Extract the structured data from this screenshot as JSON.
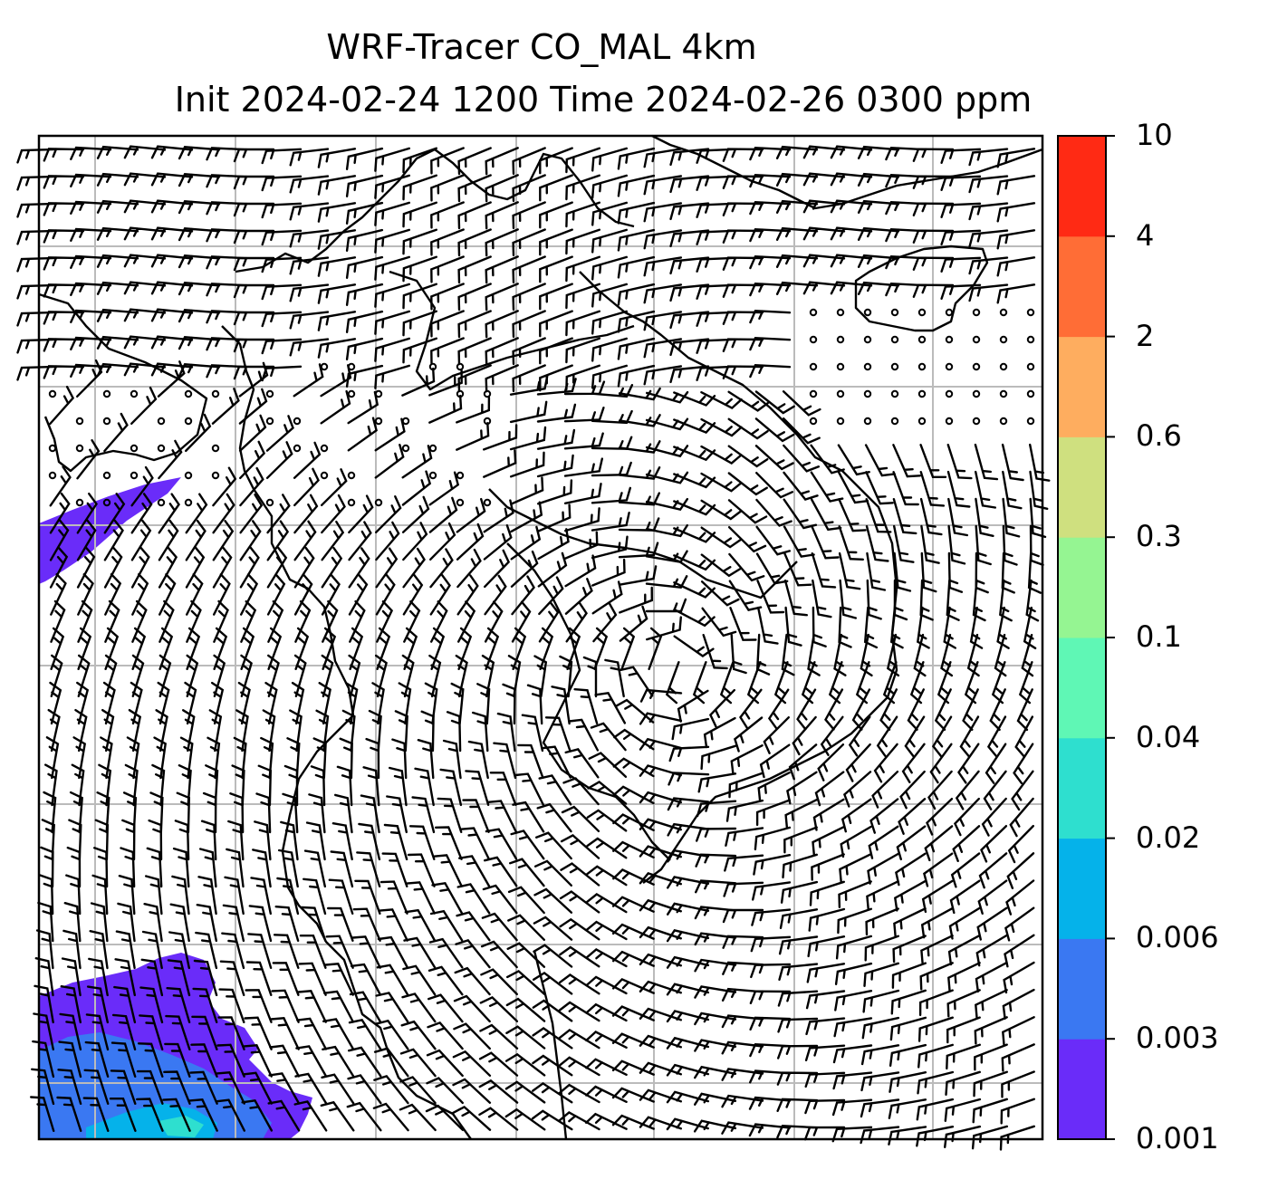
{
  "title": {
    "line1": "WRF-Tracer CO_MAL 4km",
    "line2": "Init 2024-02-24 1200 Time 2024-02-26 0300 ppm"
  },
  "colorbar": {
    "levels": [
      "0.001",
      "0.003",
      "0.006",
      "0.02",
      "0.04",
      "0.1",
      "0.3",
      "0.6",
      "2",
      "4",
      "10"
    ],
    "colors": [
      "#6a2cf9",
      "#3a78f2",
      "#05b2ea",
      "#2edfcf",
      "#5ff7b5",
      "#95f592",
      "#cfe07f",
      "#fead5f",
      "#ff6d36",
      "#ff2a14"
    ]
  },
  "map": {
    "background": "#ffffff",
    "gridline_color": "#bbbbbb",
    "coastline_color": "#000000",
    "barb_color": "#000000"
  }
}
